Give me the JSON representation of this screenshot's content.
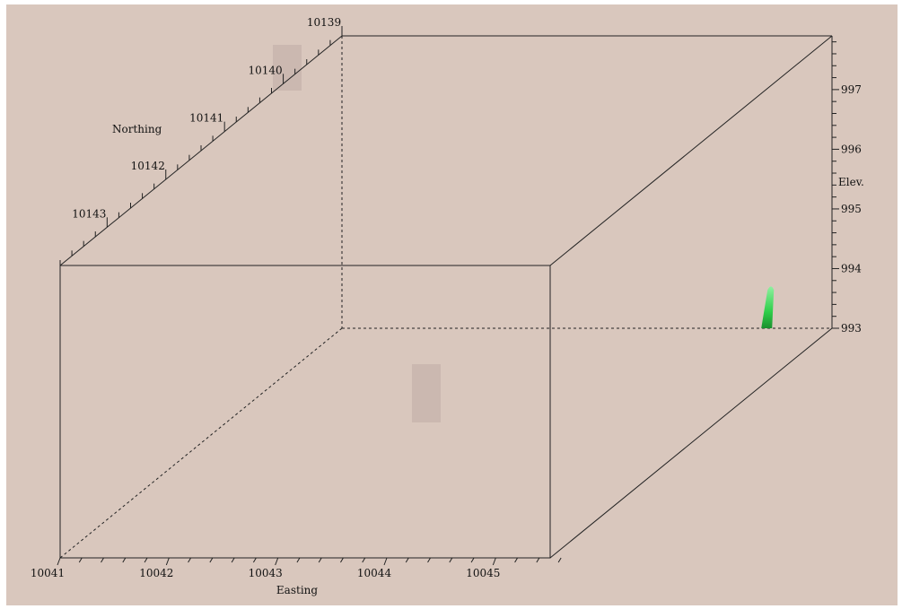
{
  "chart_data": {
    "type": "scatter",
    "title": "",
    "axes": {
      "easting": {
        "label": "Easting",
        "range": [
          10041,
          10045.5
        ],
        "ticks": [
          10041,
          10042,
          10043,
          10044,
          10045
        ]
      },
      "northing": {
        "label": "Northing",
        "range": [
          10139,
          10143.8
        ],
        "ticks": [
          10139,
          10140,
          10141,
          10142,
          10143
        ]
      },
      "elevation": {
        "label": "Elev.",
        "range": [
          993,
          997.9
        ],
        "ticks": [
          993,
          994,
          995,
          996,
          997
        ]
      }
    },
    "grid": false,
    "legend": "none",
    "series": [
      {
        "color": "#2fcf4a",
        "points": [
          {
            "easting": 10044.9,
            "northing": 10139.0,
            "elev_bottom": 993.0,
            "elev_top": 993.7
          }
        ]
      }
    ],
    "colors": {
      "background": "#d9c7bd",
      "marker": "#2fcf4a",
      "highlight_box": "#cbb8b0"
    }
  }
}
